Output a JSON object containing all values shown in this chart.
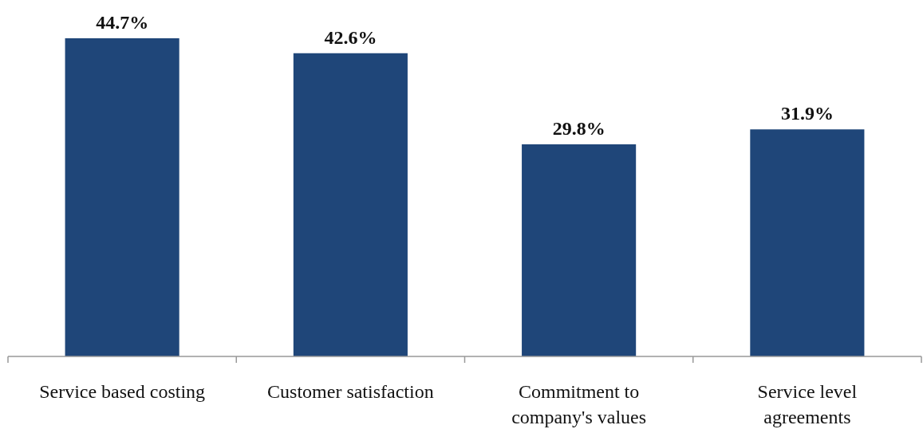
{
  "chart_data": {
    "type": "bar",
    "categories": [
      "Service based costing",
      "Customer satisfaction",
      "Commitment to\ncompany's values",
      "Service level\nagreements"
    ],
    "values": [
      44.7,
      42.6,
      29.8,
      31.9
    ],
    "value_labels": [
      "44.7%",
      "42.6%",
      "29.8%",
      "31.9%"
    ],
    "color": "#1f4679",
    "relative": false
  }
}
